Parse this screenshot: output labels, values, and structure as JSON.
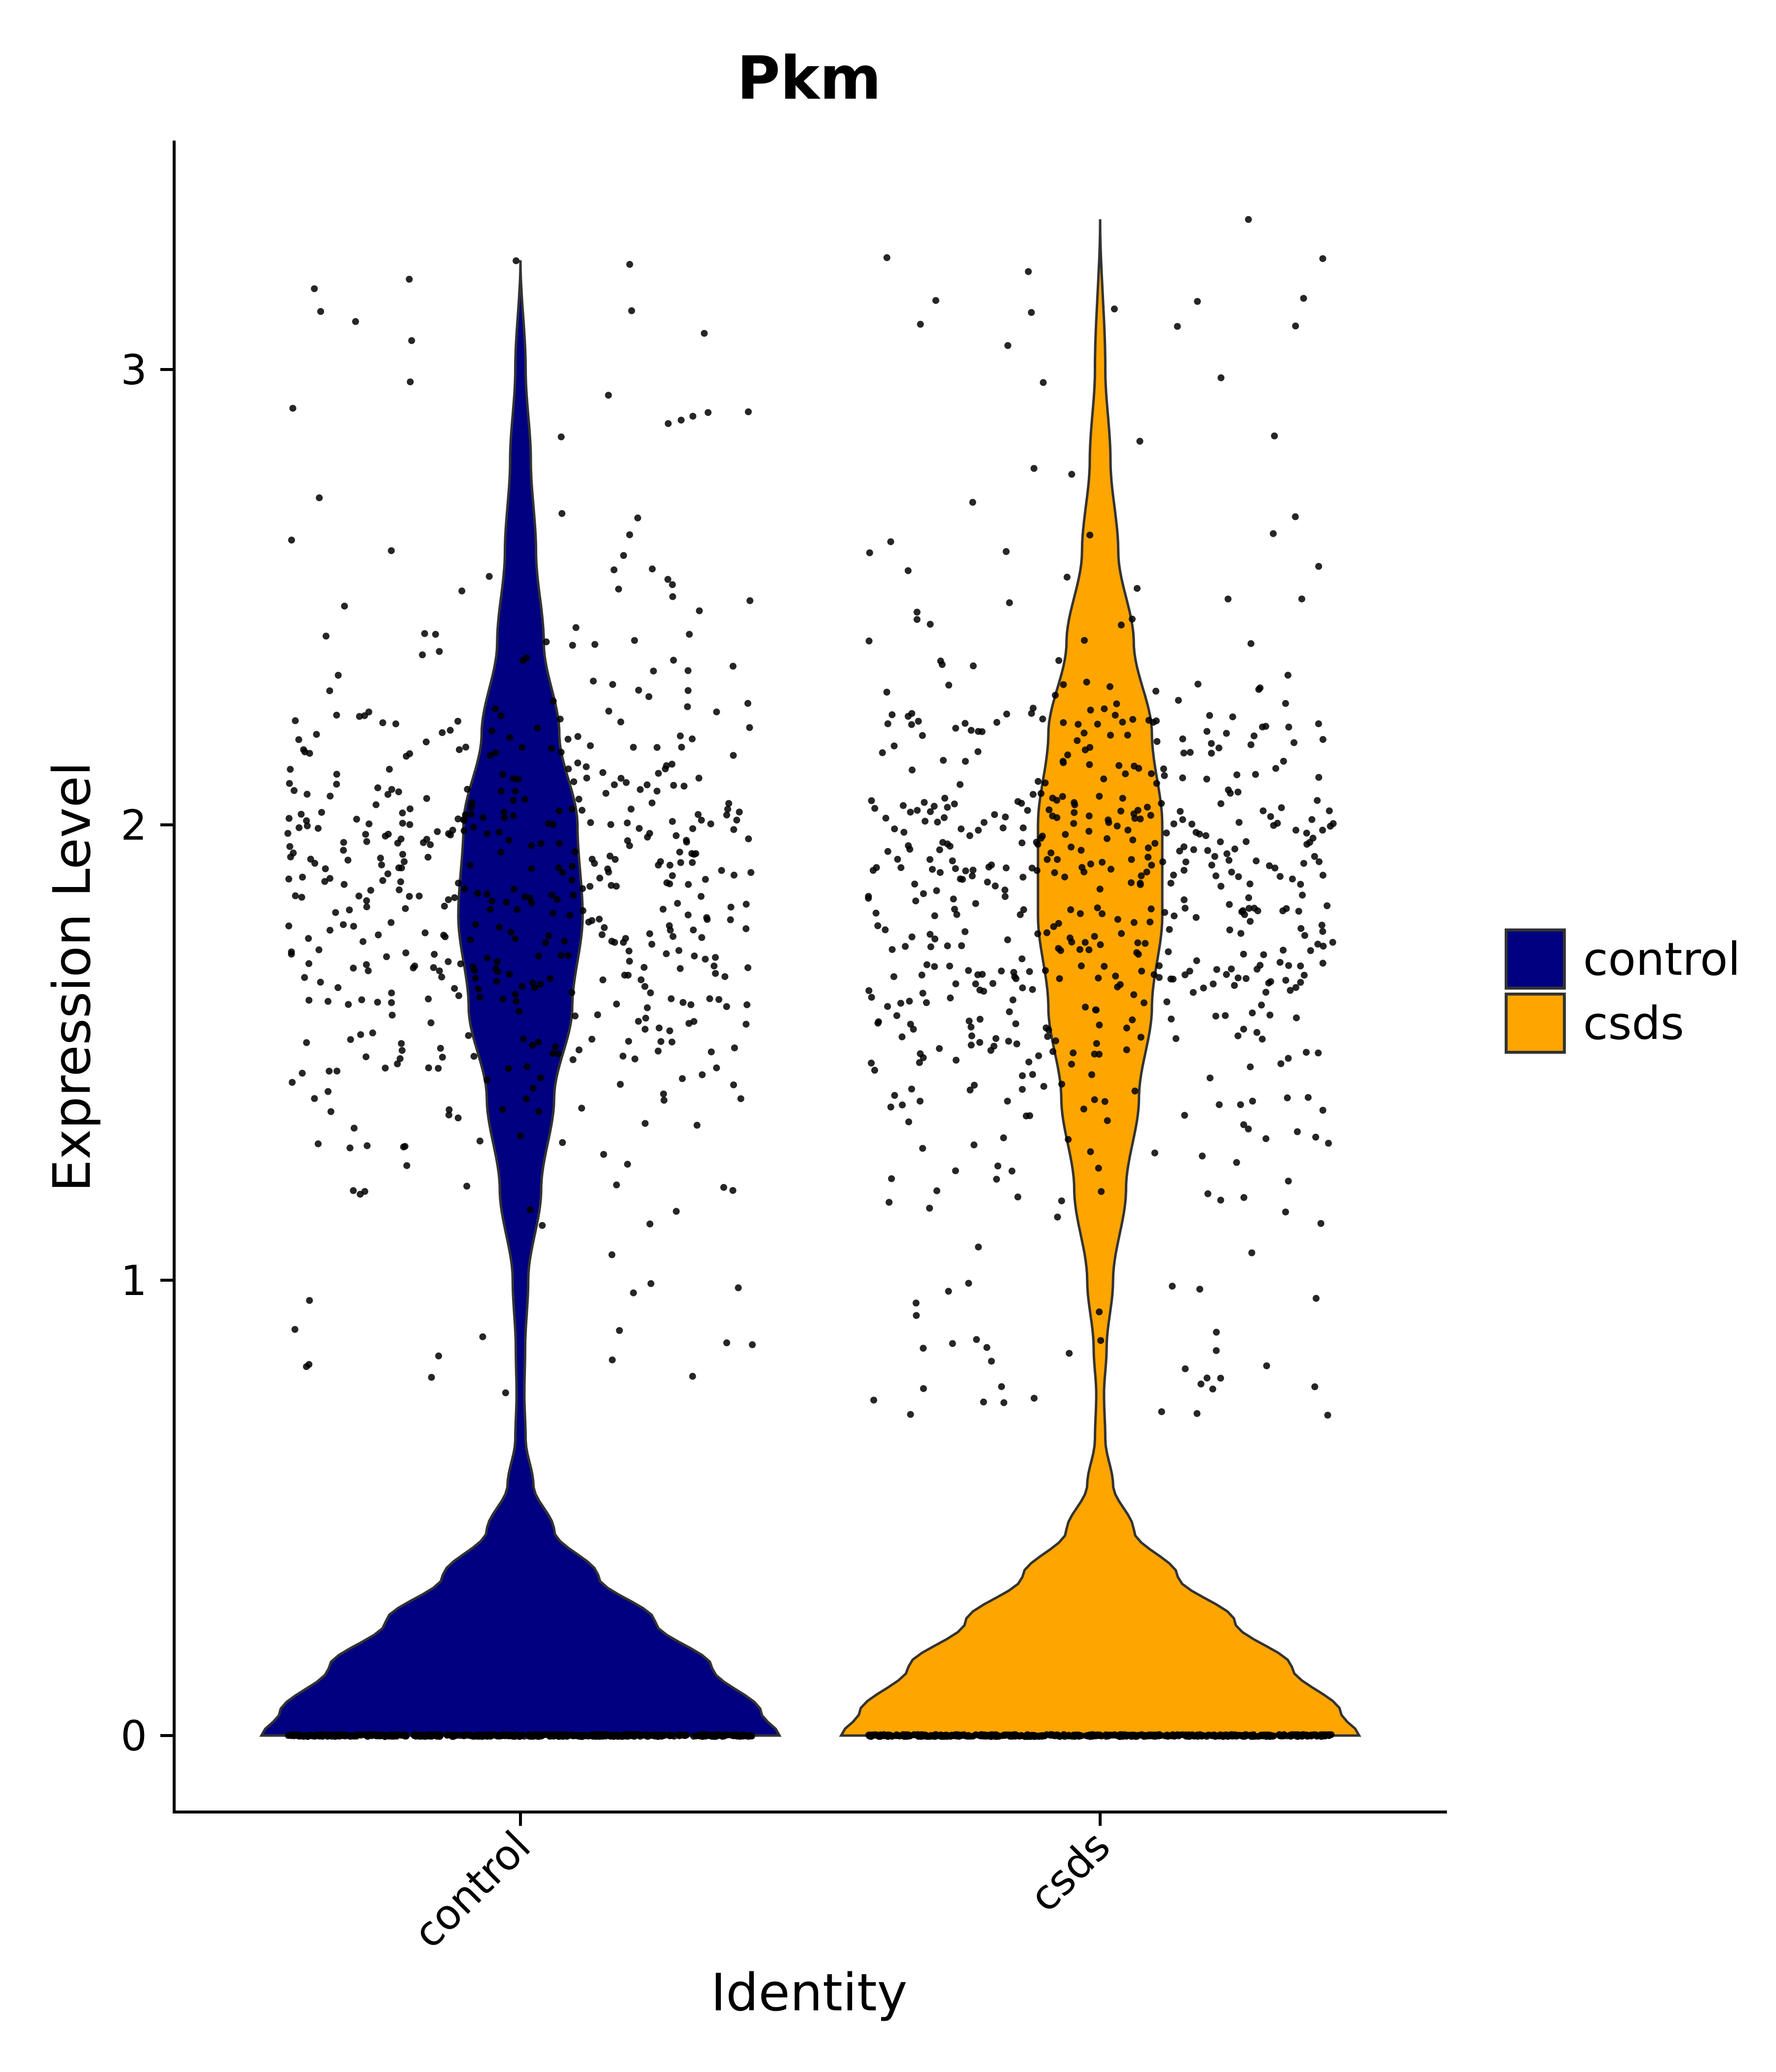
{
  "chart_data": {
    "type": "violin",
    "title": "Pkm",
    "xlabel": "Identity",
    "ylabel": "Expression Level",
    "categories": [
      "control",
      "csds"
    ],
    "colors": {
      "control": "#000080",
      "csds": "#FFA500"
    },
    "ylim": [
      -0.17,
      3.5
    ],
    "yticks": [
      0,
      1,
      2,
      3
    ],
    "grid": false,
    "legend": {
      "position": "right",
      "entries": [
        "control",
        "csds"
      ]
    },
    "series": [
      {
        "name": "control",
        "max": 3.24,
        "density_profile": [
          [
            0.0,
            1.0
          ],
          [
            0.05,
            0.93
          ],
          [
            0.15,
            0.74
          ],
          [
            0.25,
            0.52
          ],
          [
            0.35,
            0.3
          ],
          [
            0.45,
            0.13
          ],
          [
            0.55,
            0.05
          ],
          [
            0.65,
            0.02
          ],
          [
            0.75,
            0.015
          ],
          [
            0.85,
            0.018
          ],
          [
            1.0,
            0.03
          ],
          [
            1.2,
            0.08
          ],
          [
            1.4,
            0.13
          ],
          [
            1.6,
            0.2
          ],
          [
            1.8,
            0.24
          ],
          [
            2.0,
            0.22
          ],
          [
            2.2,
            0.15
          ],
          [
            2.4,
            0.09
          ],
          [
            2.6,
            0.06
          ],
          [
            2.8,
            0.04
          ],
          [
            3.0,
            0.02
          ],
          [
            3.24,
            0.0
          ]
        ],
        "zero_cells": 500,
        "nonzero_cells": 560
      },
      {
        "name": "csds",
        "max": 3.33,
        "density_profile": [
          [
            0.0,
            1.0
          ],
          [
            0.05,
            0.93
          ],
          [
            0.15,
            0.74
          ],
          [
            0.25,
            0.52
          ],
          [
            0.35,
            0.3
          ],
          [
            0.45,
            0.13
          ],
          [
            0.55,
            0.05
          ],
          [
            0.65,
            0.02
          ],
          [
            0.75,
            0.015
          ],
          [
            0.85,
            0.025
          ],
          [
            1.0,
            0.05
          ],
          [
            1.2,
            0.1
          ],
          [
            1.4,
            0.15
          ],
          [
            1.6,
            0.2
          ],
          [
            1.8,
            0.24
          ],
          [
            2.0,
            0.24
          ],
          [
            2.2,
            0.2
          ],
          [
            2.4,
            0.13
          ],
          [
            2.6,
            0.07
          ],
          [
            2.8,
            0.04
          ],
          [
            3.0,
            0.02
          ],
          [
            3.33,
            0.0
          ]
        ],
        "zero_cells": 500,
        "nonzero_cells": 640
      }
    ]
  }
}
